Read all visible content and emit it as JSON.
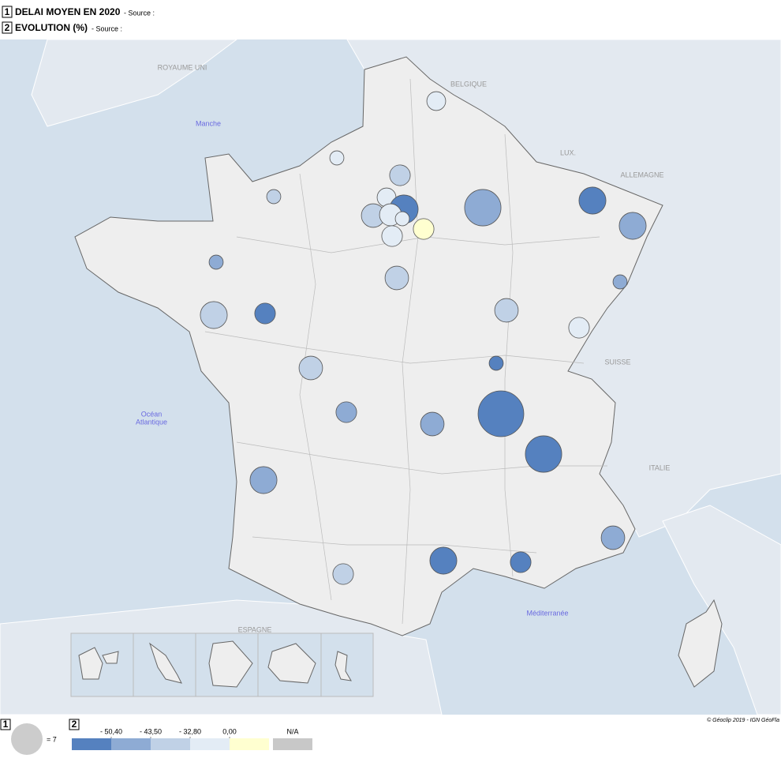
{
  "header": {
    "items": [
      {
        "number": "1",
        "title": "DELAI MOYEN EN 2020",
        "source": "- Source :"
      },
      {
        "number": "2",
        "title": "EVOLUTION (%)",
        "source": "- Source :"
      }
    ]
  },
  "map": {
    "countries": [
      "ROYAUME UNI",
      "BELGIQUE",
      "LUX.",
      "ALLEMAGNE",
      "SUISSE",
      "ITALIE",
      "ESPAGNE"
    ],
    "seas": [
      "Manche",
      "Océan",
      "Atlantique",
      "Méditerranée"
    ],
    "circles": [
      {
        "size": 2.5,
        "evolution": -15
      },
      {
        "size": 1.4,
        "evolution": -15
      },
      {
        "size": 1.4,
        "evolution": -38
      },
      {
        "size": 3.0,
        "evolution": -38
      },
      {
        "size": 2.5,
        "evolution": -15
      },
      {
        "size": 5.7,
        "evolution": -55
      },
      {
        "size": 3.9,
        "evolution": -38
      },
      {
        "size": 3.4,
        "evolution": -15
      },
      {
        "size": 1.4,
        "evolution": -15
      },
      {
        "size": 3.0,
        "evolution": -15
      },
      {
        "size": 3.0,
        "evolution": 5
      },
      {
        "size": 9.3,
        "evolution": -47
      },
      {
        "size": 5.1,
        "evolution": -55
      },
      {
        "size": 5.1,
        "evolution": -47
      },
      {
        "size": 1.4,
        "evolution": -47
      },
      {
        "size": 3.9,
        "evolution": -38
      },
      {
        "size": 1.4,
        "evolution": -47
      },
      {
        "size": 5.1,
        "evolution": -38
      },
      {
        "size": 3.0,
        "evolution": -55
      },
      {
        "size": 3.9,
        "evolution": -38
      },
      {
        "size": 3.0,
        "evolution": -15
      },
      {
        "size": 3.9,
        "evolution": -38
      },
      {
        "size": 1.4,
        "evolution": -55
      },
      {
        "size": 3.0,
        "evolution": -47
      },
      {
        "size": 3.9,
        "evolution": -47
      },
      {
        "size": 14.7,
        "evolution": -55
      },
      {
        "size": 9.3,
        "evolution": -55
      },
      {
        "size": 5.1,
        "evolution": -47
      },
      {
        "size": 3.9,
        "evolution": -47
      },
      {
        "size": 5.1,
        "evolution": -55
      },
      {
        "size": 3.0,
        "evolution": -55
      },
      {
        "size": 3.0,
        "evolution": -38
      }
    ],
    "credit": "© Géoclip 2019 - IGN GéoFla"
  },
  "legend": {
    "size": {
      "number": "1",
      "value": 7,
      "label": "= 7"
    },
    "evolution": {
      "number": "2",
      "breaks": [
        {
          "value": -50.4,
          "label": "- 50,40"
        },
        {
          "value": -43.5,
          "label": "- 43,50"
        },
        {
          "value": -32.8,
          "label": "- 32,80"
        },
        {
          "value": 0,
          "label": "0,00"
        }
      ],
      "colors": [
        "#5581bf",
        "#8eabd4",
        "#c0d1e6",
        "#e3ecf5",
        "#ffffd0"
      ],
      "na": {
        "label": "N/A",
        "color": "#c8c8c8"
      }
    }
  }
}
